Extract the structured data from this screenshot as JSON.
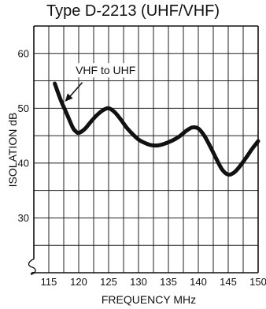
{
  "chart_data": {
    "type": "line",
    "title": "Type D-2213 (UHF/VHF)",
    "xlabel": "FREQUENCY MHz",
    "ylabel": "ISOLATION dB",
    "xlim": [
      112.5,
      150
    ],
    "ylim": [
      20,
      65
    ],
    "xticks": [
      115,
      120,
      125,
      130,
      135,
      140,
      145,
      150
    ],
    "yticks": [
      30,
      40,
      50,
      60
    ],
    "grid": true,
    "axis_break": true,
    "annotation": {
      "text": "VHF to UHF",
      "arrow_to": [
        117.7,
        51.2
      ]
    },
    "series": [
      {
        "x": [
          116,
          117,
          118,
          119,
          119.5,
          120,
          121,
          122,
          123,
          124,
          125,
          126,
          127,
          128,
          129,
          130,
          131,
          132,
          133,
          134,
          135,
          136,
          137,
          138,
          139,
          140,
          141,
          142,
          143,
          144,
          145,
          146,
          147,
          148,
          149,
          150
        ],
        "values": [
          54.5,
          51.5,
          49,
          46.5,
          45.8,
          45.5,
          46.2,
          47.5,
          48.7,
          49.6,
          50,
          49.3,
          48,
          46.5,
          45.3,
          44.3,
          43.7,
          43.3,
          43.2,
          43.4,
          43.8,
          44.3,
          45,
          45.9,
          46.5,
          46.3,
          45,
          43,
          40.8,
          38.8,
          37.9,
          38.3,
          39.5,
          41,
          42.6,
          44
        ]
      }
    ]
  }
}
